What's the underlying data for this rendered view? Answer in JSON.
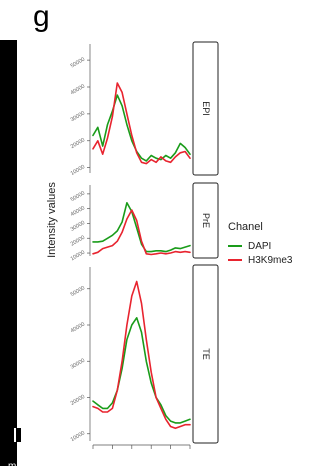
{
  "figure": {
    "panel_letter": "g",
    "edge_glyph": "m"
  },
  "chart_data": {
    "type": "line",
    "ylabel": "Intensity values",
    "yticks": [
      10000,
      20000,
      30000,
      40000,
      50000
    ],
    "ytick_labels": [
      "10000",
      "20000",
      "30000",
      "40000",
      "50000"
    ],
    "ylim": [
      8000,
      56000
    ],
    "xlim": [
      0,
      20
    ],
    "x": [
      0,
      1,
      2,
      3,
      4,
      5,
      6,
      7,
      8,
      9,
      10,
      11,
      12,
      13,
      14,
      15,
      16,
      17,
      18,
      19,
      20
    ],
    "legend": {
      "title": "Chanel",
      "position": "right",
      "entries": [
        {
          "name": "DAPI",
          "color": "#1a9c1a"
        },
        {
          "name": "H3K9me3",
          "color": "#e8242f"
        }
      ]
    },
    "facets": [
      {
        "label": "EPI",
        "series": [
          {
            "name": "DAPI",
            "color": "#1a9c1a",
            "values": [
              22000,
              25000,
              18000,
              26000,
              31000,
              37000,
              33000,
              26000,
              20000,
              16000,
              13500,
              12500,
              14500,
              13500,
              13000,
              14500,
              13500,
              15500,
              19000,
              17500,
              15000
            ]
          },
          {
            "name": "H3K9me3",
            "color": "#e8242f",
            "values": [
              17000,
              20000,
              15000,
              21000,
              29000,
              41500,
              38000,
              30000,
              22000,
              15500,
              12000,
              11500,
              13000,
              12000,
              14000,
              12500,
              12000,
              14000,
              15500,
              16000,
              13500
            ]
          }
        ]
      },
      {
        "label": "PrE",
        "series": [
          {
            "name": "DAPI",
            "color": "#1a9c1a",
            "values": [
              17500,
              17500,
              18000,
              20000,
              22000,
              25000,
              31000,
              44000,
              38000,
              27000,
              16000,
              11000,
              11000,
              11500,
              11500,
              11000,
              12000,
              13500,
              13000,
              14000,
              15000
            ]
          },
          {
            "name": "H3K9me3",
            "color": "#e8242f",
            "values": [
              9500,
              10500,
              13000,
              14000,
              15000,
              18000,
              24000,
              33000,
              39000,
              32000,
              18000,
              9500,
              9000,
              9500,
              10000,
              9500,
              10000,
              11000,
              10500,
              11000,
              10500
            ]
          }
        ]
      },
      {
        "label": "TE",
        "series": [
          {
            "name": "DAPI",
            "color": "#1a9c1a",
            "values": [
              19000,
              18000,
              17000,
              17000,
              18500,
              22000,
              28000,
              36000,
              40000,
              42000,
              38000,
              30000,
              24000,
              20000,
              18000,
              15000,
              13500,
              13000,
              13000,
              13500,
              14000
            ]
          },
          {
            "name": "H3K9me3",
            "color": "#e8242f",
            "values": [
              17500,
              17000,
              16000,
              16000,
              17000,
              22000,
              30000,
              40000,
              48000,
              52000,
              46000,
              36000,
              27000,
              20000,
              17000,
              14000,
              12000,
              11500,
              12000,
              12500,
              12500
            ]
          }
        ]
      }
    ]
  }
}
